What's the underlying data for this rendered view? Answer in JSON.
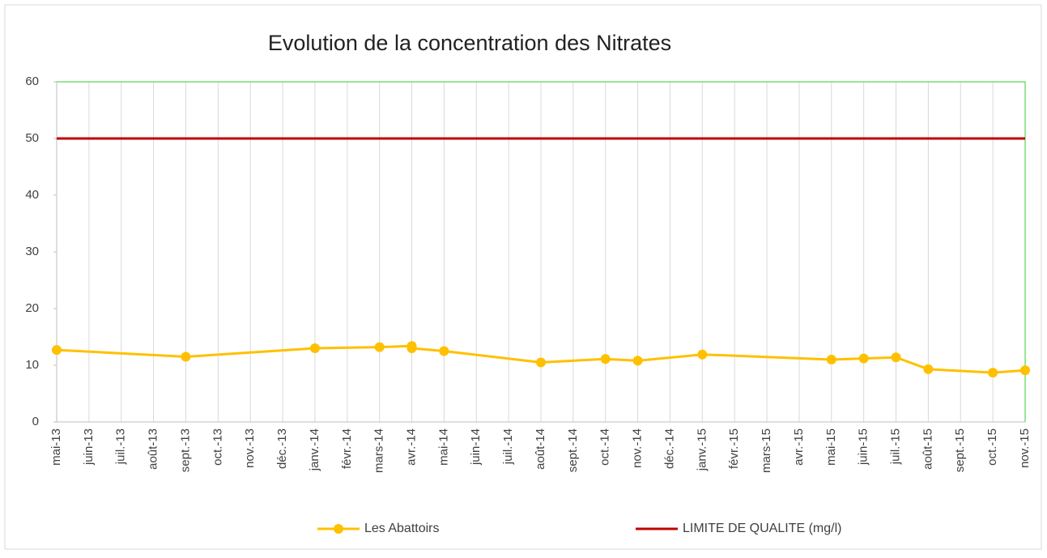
{
  "chart_data": {
    "type": "line",
    "title": "Evolution de la concentration des Nitrates",
    "categories": [
      "mai-13",
      "juin-13",
      "juil.-13",
      "août-13",
      "sept.-13",
      "oct.-13",
      "nov.-13",
      "déc.-13",
      "janv.-14",
      "févr.-14",
      "mars-14",
      "avr.-14",
      "mai-14",
      "juin-14",
      "juil.-14",
      "août-14",
      "sept.-14",
      "oct.-14",
      "nov.-14",
      "déc.-14",
      "janv.-15",
      "févr.-15",
      "mars-15",
      "avr.-15",
      "mai-15",
      "juin-15",
      "juil.-15",
      "août-15",
      "sept.-15",
      "oct.-15",
      "nov.-15"
    ],
    "series": [
      {
        "name": "Les Abattoirs",
        "color": "#ffc000",
        "x": [
          "mai-13",
          "sept.-13",
          "janv.-14",
          "mars-14",
          "avr.-14",
          "avr.-14",
          "mai-14",
          "août-14",
          "oct.-14",
          "nov.-14",
          "janv.-15",
          "mai-15",
          "juin-15",
          "juil.-15",
          "août-15",
          "oct.-15",
          "nov.-15"
        ],
        "values": [
          12.7,
          11.5,
          13.0,
          13.2,
          13.4,
          13.0,
          12.5,
          10.5,
          11.1,
          10.8,
          11.9,
          11.0,
          11.2,
          11.4,
          9.3,
          8.7,
          9.1
        ]
      },
      {
        "name": "LIMITE DE QUALITE (mg/l)",
        "color": "#c00000",
        "x": [
          "mai-13",
          "nov.-15"
        ],
        "values": [
          50,
          50
        ]
      }
    ],
    "ylim": [
      0,
      60
    ],
    "yticks": [
      0,
      10,
      20,
      30,
      40,
      50,
      60
    ],
    "grid": true
  }
}
